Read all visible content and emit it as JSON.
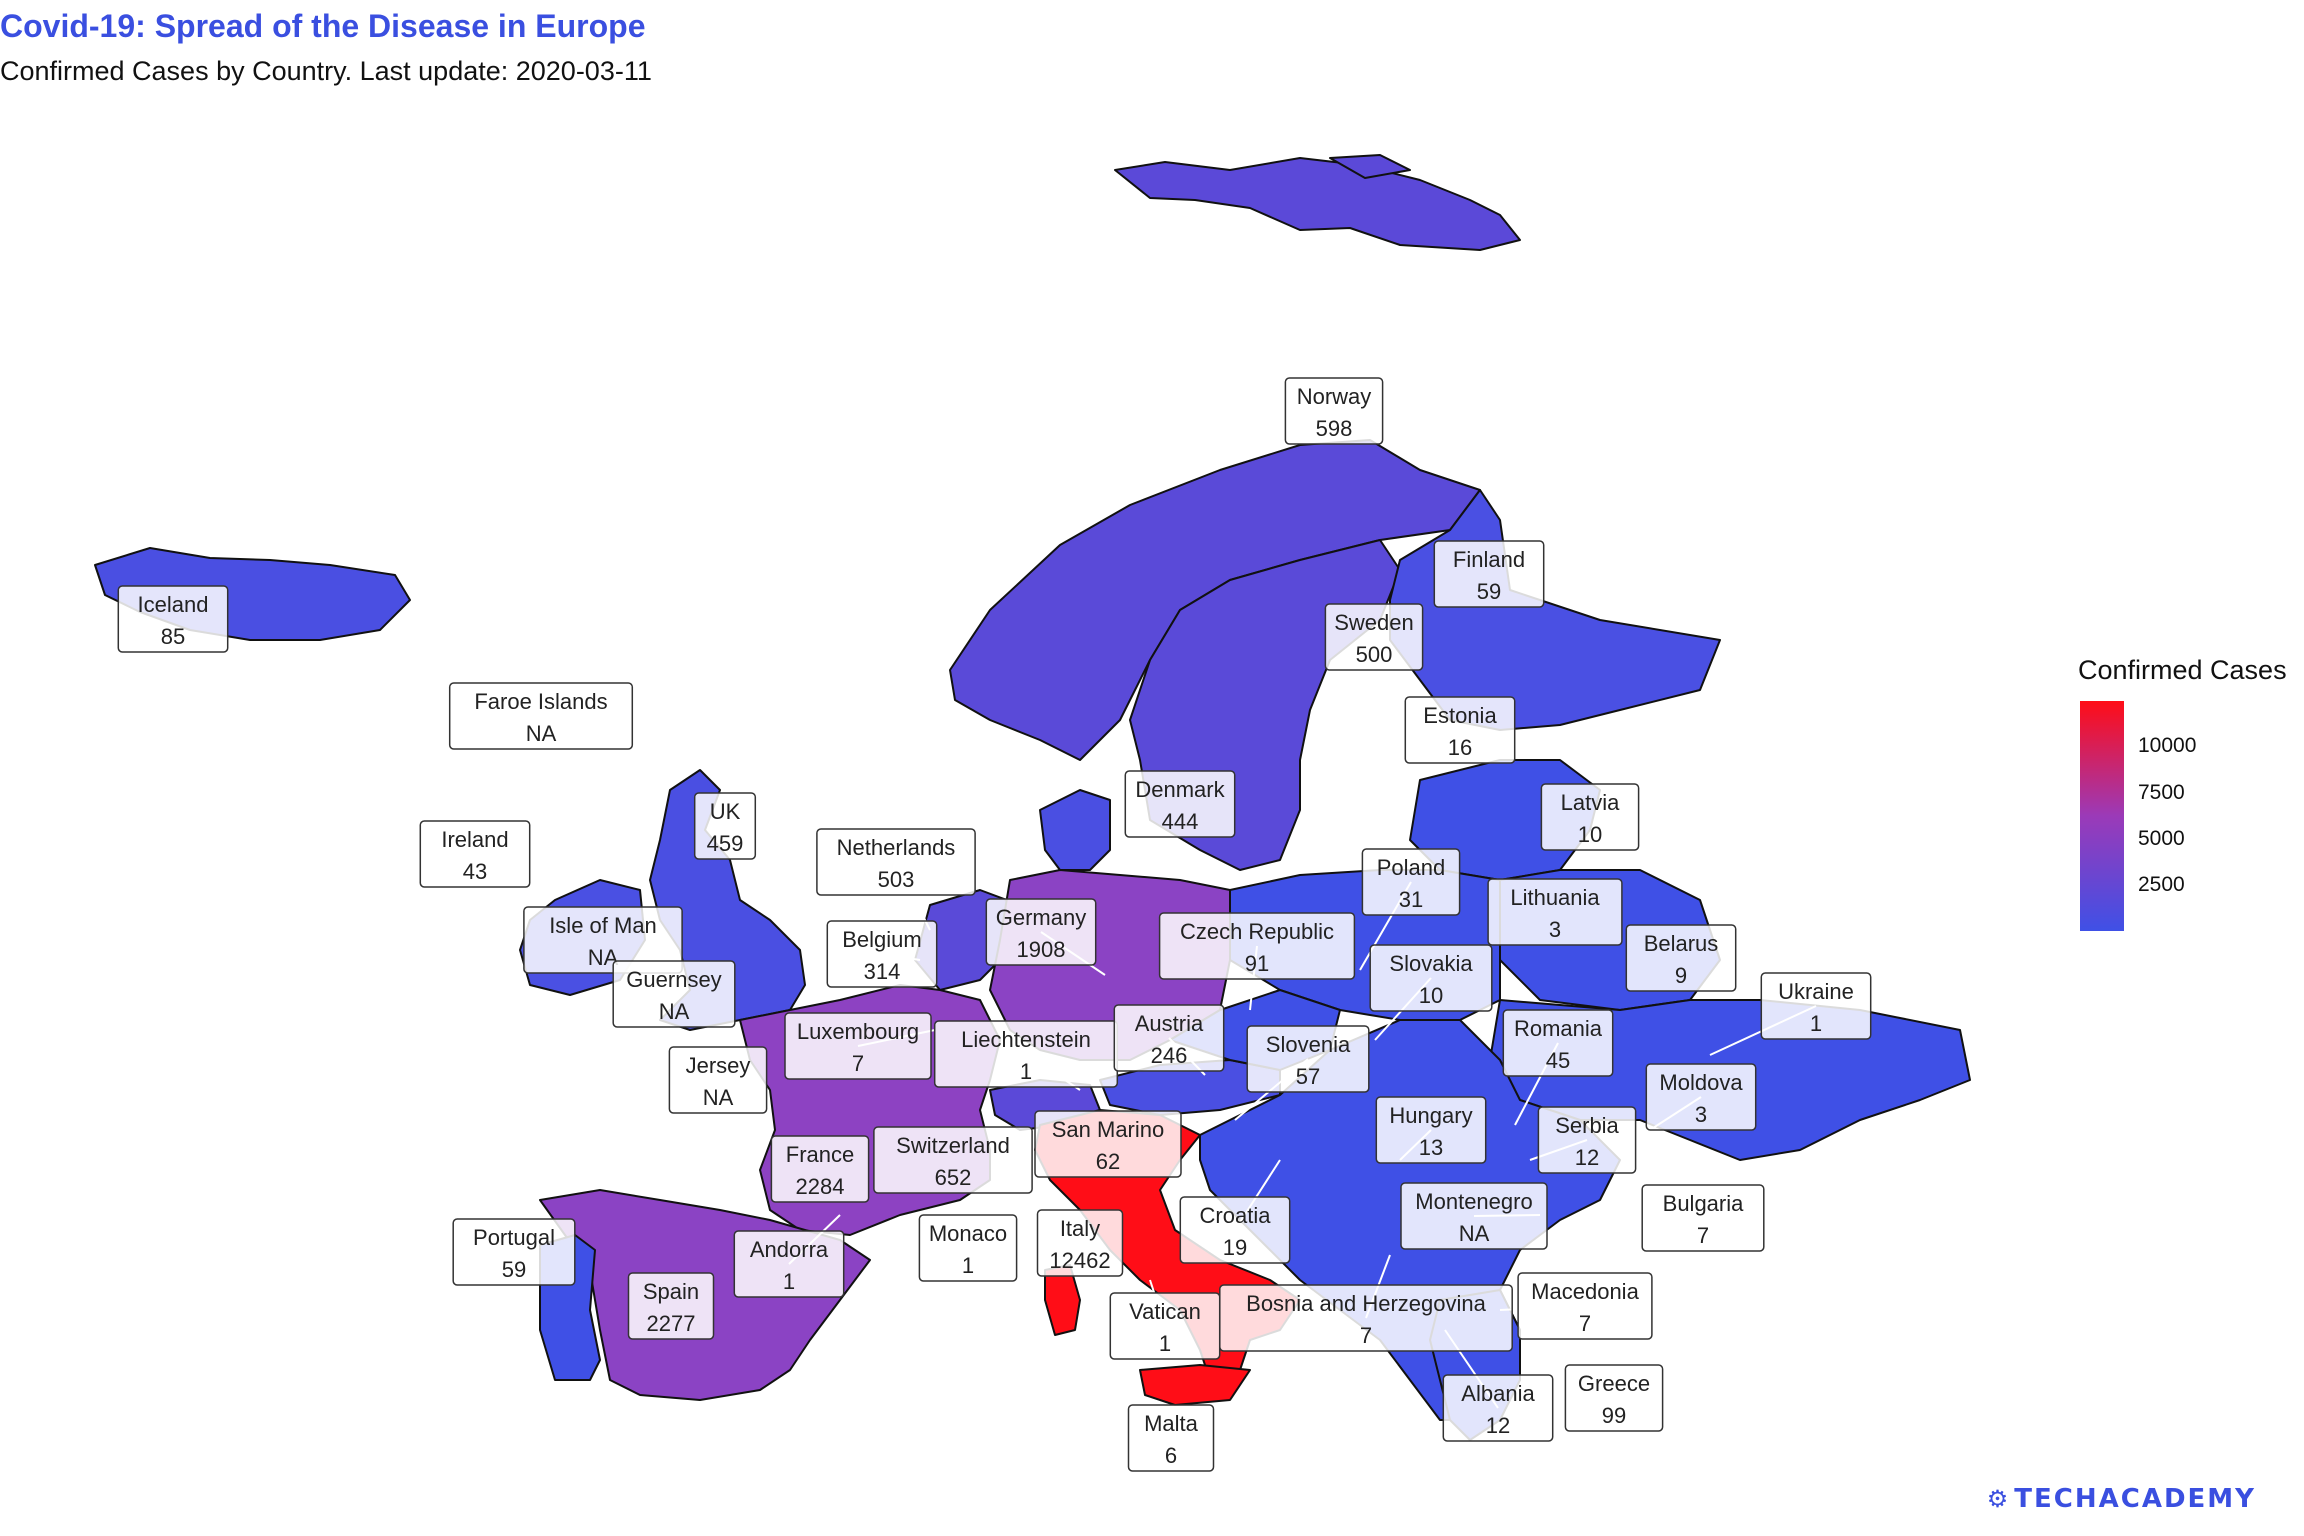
{
  "title": "Covid-19: Spread of the Disease in Europe",
  "subtitle": "Confirmed Cases by Country. Last update: 2020-03-11",
  "legend": {
    "title": "Confirmed Cases",
    "ticks": [
      "10000",
      "7500",
      "5000",
      "2500"
    ],
    "tick_values": [
      10000,
      7500,
      5000,
      2500
    ],
    "min": 0,
    "max": 12462,
    "color_low": "#3f50e6",
    "color_high": "#ff0d17"
  },
  "brand": "TECHACADEMY",
  "colors": {
    "title": "#3a4fe0",
    "land_low": "#3f50e6",
    "land_high": "#ff0d17"
  },
  "countries": [
    {
      "name": "Iceland",
      "cases": "85"
    },
    {
      "name": "Faroe Islands",
      "cases": "NA"
    },
    {
      "name": "Ireland",
      "cases": "43"
    },
    {
      "name": "Isle of Man",
      "cases": "NA"
    },
    {
      "name": "Guernsey",
      "cases": "NA"
    },
    {
      "name": "UK",
      "cases": "459"
    },
    {
      "name": "Netherlands",
      "cases": "503"
    },
    {
      "name": "Belgium",
      "cases": "314"
    },
    {
      "name": "Germany",
      "cases": "1908"
    },
    {
      "name": "Denmark",
      "cases": "444"
    },
    {
      "name": "Norway",
      "cases": "598"
    },
    {
      "name": "Sweden",
      "cases": "500"
    },
    {
      "name": "Finland",
      "cases": "59"
    },
    {
      "name": "Estonia",
      "cases": "16"
    },
    {
      "name": "Latvia",
      "cases": "10"
    },
    {
      "name": "Lithuania",
      "cases": "3"
    },
    {
      "name": "Belarus",
      "cases": "9"
    },
    {
      "name": "Poland",
      "cases": "31"
    },
    {
      "name": "Czech Republic",
      "cases": "91"
    },
    {
      "name": "Slovakia",
      "cases": "10"
    },
    {
      "name": "Ukraine",
      "cases": "1"
    },
    {
      "name": "Luxembourg",
      "cases": "7"
    },
    {
      "name": "Liechtenstein",
      "cases": "1"
    },
    {
      "name": "Austria",
      "cases": "246"
    },
    {
      "name": "Slovenia",
      "cases": "57"
    },
    {
      "name": "Romania",
      "cases": "45"
    },
    {
      "name": "Moldova",
      "cases": "3"
    },
    {
      "name": "Jersey",
      "cases": "NA"
    },
    {
      "name": "France",
      "cases": "2284"
    },
    {
      "name": "Switzerland",
      "cases": "652"
    },
    {
      "name": "San Marino",
      "cases": "62"
    },
    {
      "name": "Hungary",
      "cases": "13"
    },
    {
      "name": "Serbia",
      "cases": "12"
    },
    {
      "name": "Croatia",
      "cases": "19"
    },
    {
      "name": "Montenegro",
      "cases": "NA"
    },
    {
      "name": "Bulgaria",
      "cases": "7"
    },
    {
      "name": "Portugal",
      "cases": "59"
    },
    {
      "name": "Andorra",
      "cases": "1"
    },
    {
      "name": "Monaco",
      "cases": "1"
    },
    {
      "name": "Italy",
      "cases": "12462"
    },
    {
      "name": "Spain",
      "cases": "2277"
    },
    {
      "name": "Vatican",
      "cases": "1"
    },
    {
      "name": "Bosnia and Herzegovina",
      "cases": "7"
    },
    {
      "name": "Macedonia",
      "cases": "7"
    },
    {
      "name": "Albania",
      "cases": "12"
    },
    {
      "name": "Greece",
      "cases": "99"
    },
    {
      "name": "Malta",
      "cases": "6"
    }
  ]
}
